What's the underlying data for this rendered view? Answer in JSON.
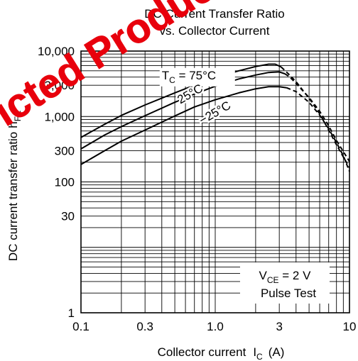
{
  "watermark": {
    "text": "Restricted Products",
    "color": "#e8000c"
  },
  "chart_data": {
    "type": "line",
    "title_line1": "DC Current Transfer Ratio",
    "title_line2": "vs. Collector Current",
    "xlabel": "Collector current",
    "xlabel_var": "I",
    "xlabel_sub": "C",
    "xlabel_unit": "(A)",
    "ylabel": "DC current transfer ratio",
    "ylabel_var": "h",
    "ylabel_sub": "FE",
    "x_scale": "log",
    "y_scale": "log",
    "xlim": [
      0.1,
      10
    ],
    "ylim": [
      1,
      10000
    ],
    "grid": true,
    "x_ticks": [
      {
        "value": 0.1,
        "label": "0.1"
      },
      {
        "value": 0.3,
        "label": "0.3"
      },
      {
        "value": 1,
        "label": "1.0"
      },
      {
        "value": 3,
        "label": "3"
      },
      {
        "value": 10,
        "label": "10"
      }
    ],
    "y_ticks": [
      {
        "value": 1,
        "label": "1"
      },
      {
        "value": 30,
        "label": "30"
      },
      {
        "value": 100,
        "label": "100"
      },
      {
        "value": 300,
        "label": "300"
      },
      {
        "value": 1000,
        "label": "1,000"
      },
      {
        "value": 3000,
        "label": "3,000"
      },
      {
        "value": 10000,
        "label": "10,000"
      }
    ],
    "series": [
      {
        "name": "T_C = 75°C",
        "solid": [
          [
            0.1,
            480
          ],
          [
            0.15,
            760
          ],
          [
            0.2,
            1040
          ],
          [
            0.3,
            1500
          ],
          [
            0.5,
            2300
          ],
          [
            0.7,
            3000
          ],
          [
            1.0,
            3900
          ],
          [
            1.5,
            5000
          ],
          [
            2.0,
            5800
          ],
          [
            2.5,
            6300
          ],
          [
            2.8,
            6300
          ],
          [
            3.1,
            5700
          ]
        ],
        "dashed": [
          [
            3.1,
            5700
          ],
          [
            3.5,
            4500
          ],
          [
            4.0,
            3400
          ],
          [
            5.0,
            1900
          ],
          [
            6.0,
            1100
          ],
          [
            7.0,
            620
          ],
          [
            8.0,
            370
          ],
          [
            9.0,
            240
          ],
          [
            10.0,
            165
          ]
        ]
      },
      {
        "name": "25°C",
        "solid": [
          [
            0.1,
            320
          ],
          [
            0.15,
            520
          ],
          [
            0.2,
            700
          ],
          [
            0.3,
            1030
          ],
          [
            0.5,
            1650
          ],
          [
            0.7,
            2200
          ],
          [
            1.0,
            2900
          ],
          [
            1.5,
            3750
          ],
          [
            2.0,
            4300
          ],
          [
            2.5,
            4700
          ],
          [
            3.0,
            4800
          ],
          [
            3.3,
            4500
          ]
        ],
        "dashed": [
          [
            3.3,
            4500
          ],
          [
            3.6,
            4000
          ],
          [
            4.0,
            3200
          ],
          [
            5.0,
            1950
          ],
          [
            6.0,
            1200
          ],
          [
            7.0,
            720
          ],
          [
            8.0,
            430
          ],
          [
            9.0,
            290
          ],
          [
            10.0,
            205
          ]
        ]
      },
      {
        "name": "−25°C",
        "solid": [
          [
            0.1,
            185
          ],
          [
            0.15,
            300
          ],
          [
            0.2,
            420
          ],
          [
            0.3,
            620
          ],
          [
            0.5,
            1020
          ],
          [
            0.7,
            1400
          ],
          [
            1.0,
            1800
          ],
          [
            1.5,
            2300
          ],
          [
            2.0,
            2650
          ],
          [
            2.5,
            2850
          ],
          [
            3.0,
            2850
          ],
          [
            3.4,
            2750
          ]
        ],
        "dashed": [
          [
            3.4,
            2750
          ],
          [
            4.0,
            2400
          ],
          [
            5.0,
            1650
          ],
          [
            6.0,
            1050
          ],
          [
            7.0,
            650
          ],
          [
            8.0,
            400
          ],
          [
            9.0,
            250
          ],
          [
            10.0,
            145
          ]
        ]
      }
    ],
    "annotations": {
      "series_labels": [
        {
          "prefix": "T",
          "sub": "C",
          "text": " = 75°C",
          "x": 0.4,
          "y": 3700
        },
        {
          "prefix": "",
          "sub": "",
          "text": "25°C",
          "x": 0.55,
          "y": 1550
        },
        {
          "prefix": "",
          "sub": "",
          "text": "−25°C",
          "x": 0.8,
          "y": 750
        }
      ],
      "condition_line1_var": "V",
      "condition_line1_sub": "CE",
      "condition_line1_rest": " = 2 V",
      "condition_line2": "Pulse Test"
    }
  }
}
